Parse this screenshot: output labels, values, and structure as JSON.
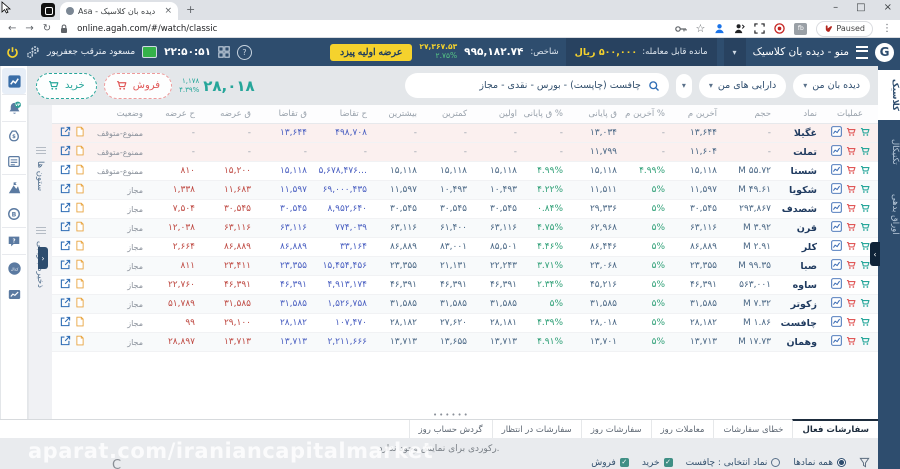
{
  "browser": {
    "tab_title": "Asa - دیده بان کلاسیک",
    "close_tab": "×",
    "new_tab": "+",
    "url": "online.agah.com/#/watch/classic",
    "paused_label": "Paused",
    "win": {
      "min": "–",
      "max": "□",
      "close": "×"
    },
    "nav": {
      "back": "←",
      "forward": "→",
      "reload": "↻"
    },
    "fb_badge": "fb",
    "more": "⋮",
    "star": "☆"
  },
  "header": {
    "logo_letter": "G",
    "menu_label": "منو - دیده بان کلاسیک",
    "caret": "▾",
    "balance_label": "مانده قابل معامله:",
    "balance_value": "۵۰۰,۰۰۰ ریال",
    "index_label": "شاخص:",
    "index_value": "۹۹۵,۱۸۲.۷۴",
    "index_change": "۲۷,۳۶۷.۵۳",
    "index_change_pct": "۲.۷۵%",
    "ipo_button": "عرضه اولیه پیزد",
    "time": "۲۲:۵۰:۵۱",
    "user_name": "مسعود مترقب جعفرپور",
    "help": "?",
    "power": "⏻"
  },
  "toolbar": {
    "watchlist_dropdown": "دیده بان من",
    "assets_button": "دارایی های من",
    "search_value": "چافست (چاپست) - بورس - نقدی - مجاز",
    "selected_price": "۲۸,۰۱۸",
    "selected_change": "۱,۱۷۸",
    "selected_change_pct": "۴.۳۹%",
    "sell_label": "فروش",
    "buy_label": "خرید"
  },
  "sidebar": {
    "icons": [
      "watchlist-chart",
      "alerts-bell-vp",
      "portfolio-bag",
      "orders-list",
      "ipo-flag",
      "funds-coin",
      "messages-chat",
      "codal",
      "market-board"
    ]
  },
  "left_panels": {
    "columns": "ستون ها",
    "save_restore": "ذخیره بازیابی",
    "expand": "›"
  },
  "right_tabs": {
    "items": [
      "کلاسیک",
      "تکنیکال",
      "اوراق بدهی"
    ],
    "active": "کلاسیک",
    "collapse": "‹"
  },
  "table": {
    "headers": [
      "عملیات",
      "نماد",
      "حجم",
      "آخرین م",
      "% آخرین م",
      "ق پایانی",
      "% ق پایانی",
      "اولین",
      "کمترین",
      "بیشترین",
      "ح تقاضا",
      "ق تقاضا",
      "ق عرضه",
      "ح عرضه",
      "وضعیت",
      ""
    ],
    "sort_indicator": "↑",
    "rows": [
      {
        "symbol": "غگیلا",
        "volume": "-",
        "last": "۱۳,۶۴۴",
        "last_pct": "-",
        "close": "۱۳,۰۳۴",
        "close_pct": "-",
        "first": "-",
        "low": "-",
        "high": "-",
        "bid_vol": "۴۹۸,۷۰۸",
        "bid_price": "۱۳,۶۴۴",
        "ask_price": "-",
        "ask_vol": "-",
        "status": "ممنوع-متوقف"
      },
      {
        "symbol": "تملت",
        "volume": "-",
        "last": "۱۱,۶۰۴",
        "last_pct": "-",
        "close": "۱۱,۷۹۹",
        "close_pct": "-",
        "first": "-",
        "low": "-",
        "high": "-",
        "bid_vol": "-",
        "bid_price": "-",
        "ask_price": "-",
        "ask_vol": "-",
        "status": "ممنوع-متوقف"
      },
      {
        "symbol": "شستا",
        "volume": "۵۵.۷۲ M",
        "last": "۱۵,۱۱۸",
        "last_pct": "۴.۹۹%",
        "close": "۱۵,۱۱۸",
        "close_pct": "۴.۹۹%",
        "first": "۱۵,۱۱۸",
        "low": "۱۵,۱۱۸",
        "high": "۱۵,۱۱۸",
        "bid_vol": "…۵,۶۷۸,۴۷۶",
        "bid_price": "۱۵,۱۱۸",
        "ask_price": "۱۵,۲۰۰",
        "ask_vol": "۸۱۰",
        "status": "ممنوع-متوقف"
      },
      {
        "symbol": "شکویا",
        "volume": "۴۹.۶۱ M",
        "last": "۱۱,۵۹۷",
        "last_pct": "۵%",
        "close": "۱۱,۵۱۱",
        "close_pct": "۴.۲۲%",
        "first": "۱۰,۴۹۳",
        "low": "۱۰,۴۹۳",
        "high": "۱۱,۵۹۷",
        "bid_vol": "۶۹,۰۰۰,۴۳۵",
        "bid_price": "۱۱,۵۹۷",
        "ask_price": "۱۱,۶۸۳",
        "ask_vol": "۱,۳۳۸",
        "status": "مجاز"
      },
      {
        "symbol": "شصدف",
        "volume": "۲۹۳,۸۶۷",
        "last": "۳۰,۵۴۵",
        "last_pct": "۵%",
        "close": "۲۹,۳۳۶",
        "close_pct": "۰.۸۴%",
        "first": "۳۰,۵۴۵",
        "low": "۳۰,۵۴۵",
        "high": "۳۰,۵۴۵",
        "bid_vol": "۸,۹۵۲,۶۴۰",
        "bid_price": "۳۰,۵۴۵",
        "ask_price": "۳۰,۵۴۵",
        "ask_vol": "۷,۵۰۴",
        "status": "مجاز"
      },
      {
        "symbol": "قرن",
        "volume": "۳.۹۲ M",
        "last": "۶۳,۱۱۶",
        "last_pct": "۵%",
        "close": "۶۲,۹۶۸",
        "close_pct": "۴.۷۵%",
        "first": "۶۳,۱۱۶",
        "low": "۶۱,۴۰۰",
        "high": "۶۳,۱۱۶",
        "bid_vol": "۷۷۴,۰۳۹",
        "bid_price": "۶۳,۱۱۶",
        "ask_price": "۶۳,۱۱۶",
        "ask_vol": "۱۲,۰۳۸",
        "status": "مجاز"
      },
      {
        "symbol": "کلر",
        "volume": "۲.۹۱ M",
        "last": "۸۶,۸۸۹",
        "last_pct": "۵%",
        "close": "۸۶,۴۴۶",
        "close_pct": "۴.۴۶%",
        "first": "۸۵,۵۰۱",
        "low": "۸۳,۰۰۱",
        "high": "۸۶,۸۸۹",
        "bid_vol": "۳۳,۱۶۴",
        "bid_price": "۸۶,۸۸۹",
        "ask_price": "۸۶,۸۸۹",
        "ask_vol": "۲,۶۶۴",
        "status": "مجاز"
      },
      {
        "symbol": "صبا",
        "volume": "۹۹.۳۵ M",
        "last": "۲۳,۳۵۵",
        "last_pct": "۵%",
        "close": "۲۳,۰۶۸",
        "close_pct": "۳.۷۱%",
        "first": "۲۲,۲۴۳",
        "low": "۲۱,۱۳۱",
        "high": "۲۳,۳۵۵",
        "bid_vol": "۱۵,۴۵۴,۴۵۶",
        "bid_price": "۲۳,۳۵۵",
        "ask_price": "۲۳,۴۱۱",
        "ask_vol": "۸۱۱",
        "status": "مجاز"
      },
      {
        "symbol": "ساوه",
        "volume": "۵۶۳,۰۰۱",
        "last": "۴۶,۳۹۱",
        "last_pct": "۵%",
        "close": "۴۵,۲۱۶",
        "close_pct": "۲.۳۴%",
        "first": "۴۶,۳۹۱",
        "low": "۴۶,۳۹۱",
        "high": "۴۶,۳۹۱",
        "bid_vol": "۴,۹۱۳,۱۷۴",
        "bid_price": "۴۶,۳۹۱",
        "ask_price": "۴۶,۳۹۱",
        "ask_vol": "۲۲,۷۶۰",
        "status": "مجاز"
      },
      {
        "symbol": "زکوتر",
        "volume": "۷.۳۲ M",
        "last": "۳۱,۵۸۵",
        "last_pct": "۵%",
        "close": "۳۱,۵۸۵",
        "close_pct": "۵%",
        "first": "۳۱,۵۸۵",
        "low": "۳۱,۵۸۵",
        "high": "۳۱,۵۸۵",
        "bid_vol": "۱,۵۲۶,۷۵۸",
        "bid_price": "۳۱,۵۸۵",
        "ask_price": "۳۱,۵۸۵",
        "ask_vol": "۵۱,۷۸۹",
        "status": "مجاز"
      },
      {
        "symbol": "چافست",
        "volume": "۱.۸۶ M",
        "last": "۲۸,۱۸۲",
        "last_pct": "۵%",
        "close": "۲۸,۰۱۸",
        "close_pct": "۴.۳۹%",
        "first": "۲۸,۱۸۱",
        "low": "۲۷,۶۲۰",
        "high": "۲۸,۱۸۲",
        "bid_vol": "۱۰۷,۴۷۰",
        "bid_price": "۲۸,۱۸۲",
        "ask_price": "۲۹,۱۰۰",
        "ask_vol": "۹۹",
        "status": "مجاز"
      },
      {
        "symbol": "وهمان",
        "volume": "۱۷.۷۳ M",
        "last": "۱۳,۷۱۳",
        "last_pct": "۵%",
        "close": "۱۳,۷۰۱",
        "close_pct": "۴.۹۱%",
        "first": "۱۳,۷۱۳",
        "low": "۱۳,۶۵۵",
        "high": "۱۳,۷۱۳",
        "bid_vol": "۲,۲۱۱,۶۶۶",
        "bid_price": "۱۳,۷۱۳",
        "ask_price": "۱۳,۷۱۳",
        "ask_vol": "۲۸,۸۹۷",
        "status": "مجاز"
      }
    ]
  },
  "bottom": {
    "tabs": [
      "سفارشات فعال",
      "خطای سفارشات",
      "معاملات روز",
      "سفارشات روز",
      "سفارشات در انتظار",
      "گردش حساب روز"
    ],
    "active_tab": "سفارشات فعال",
    "empty_message": "رکوردی برای نمایش وجود ندارد.",
    "filter": {
      "all_symbols": "همه نمادها",
      "selected_symbol": "نماد انتخابی : چافست",
      "buy": "خرید",
      "sell": "فروش"
    }
  },
  "watermark": "aparat.com/iraniancapitalmarket",
  "colors": {
    "header_bg": "#2e4d6e",
    "accent_yellow": "#f5d22d",
    "accent_green": "#26a69a",
    "pct_green": "#2fa077",
    "bid_blue": "#4a5fc1",
    "ask_red": "#bf4a43",
    "halt_row": "#fbf0ef"
  }
}
